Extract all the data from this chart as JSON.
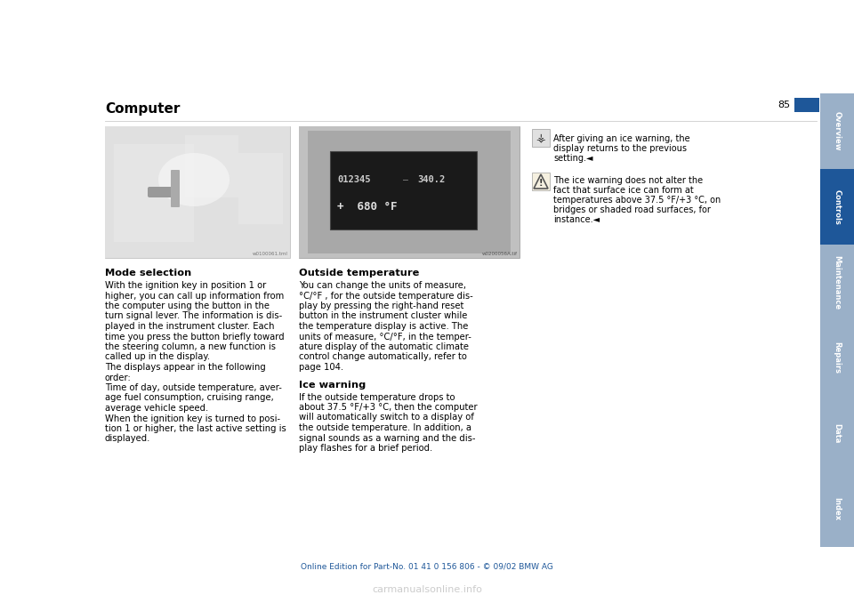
{
  "page_bg": "#ffffff",
  "page_number": "85",
  "title": "Computer",
  "title_fontsize": 11,
  "sidebar_tabs": [
    "Overview",
    "Controls",
    "Maintenance",
    "Repairs",
    "Data",
    "Index"
  ],
  "sidebar_active": "Controls",
  "sidebar_color_active": "#1e5799",
  "sidebar_color_inactive": "#9ab0c8",
  "sidebar_text_color": "#ffffff",
  "blue_rect_color": "#1e5799",
  "footer_text": "Online Edition for Part-No. 01 41 0 156 806 - © 09/02 BMW AG",
  "footer_color": "#1e5799",
  "section1_heading": "Mode selection",
  "section1_body_lines": [
    "With the ignition key in position 1 or",
    "higher, you can call up information from",
    "the computer using the button in the",
    "turn signal lever. The information is dis-",
    "played in the instrument cluster. Each",
    "time you press the button briefly toward",
    "the steering column, a new function is",
    "called up in the display.",
    "The displays appear in the following",
    "order:",
    "Time of day, outside temperature, aver-",
    "age fuel consumption, cruising range,",
    "average vehicle speed.",
    "When the ignition key is turned to posi-",
    "tion 1 or higher, the last active setting is",
    "displayed."
  ],
  "section2_heading": "Outside temperature",
  "section2_body_lines": [
    "You can change the units of measure,",
    "°C/°F , for the outside temperature dis-",
    "play by pressing the right-hand reset",
    "button in the instrument cluster while",
    "the temperature display is active. The",
    "units of measure, °C/°F, in the temper-",
    "ature display of the automatic climate",
    "control change automatically, refer to",
    "page 104."
  ],
  "section3_heading": "Ice warning",
  "section3_body_lines": [
    "If the outside temperature drops to",
    "about 37.5 °F/+3 °C, then the computer",
    "will automatically switch to a display of",
    "the outside temperature. In addition, a",
    "signal sounds as a warning and the dis-",
    "play flashes for a brief period."
  ],
  "note1_lines": [
    "After giving an ice warning, the",
    "display returns to the previous",
    "setting.◄"
  ],
  "note2_lines": [
    "The ice warning does not alter the",
    "fact that surface ice can form at",
    "temperatures above 37.5 °F/+3 °C, on",
    "bridges or shaded road surfaces, for",
    "instance.◄"
  ],
  "img_left_watermark": "w0100061.tml",
  "img_right_watermark": "w0200056A.tif",
  "display_line1": "012345  —  340.2",
  "display_line2": "+  680 °F"
}
